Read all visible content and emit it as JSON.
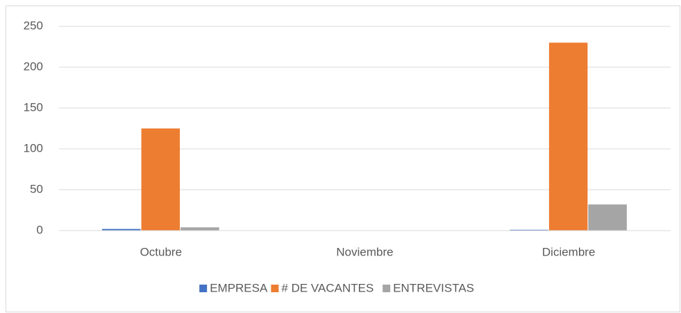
{
  "chart_data": {
    "type": "bar",
    "categories": [
      "Octubre",
      "Noviembre",
      "Diciembre"
    ],
    "series": [
      {
        "name": "EMPRESA",
        "color": "#4472c4",
        "values": [
          2,
          0,
          1
        ]
      },
      {
        "name": "# DE VACANTES",
        "color": "#ed7d31",
        "values": [
          125,
          0,
          230
        ]
      },
      {
        "name": "ENTREVISTAS",
        "color": "#a5a5a5",
        "values": [
          4,
          0,
          32
        ]
      }
    ],
    "ylim": [
      0,
      250
    ],
    "yticks": [
      0,
      50,
      100,
      150,
      200,
      250
    ],
    "grid": true,
    "legend": "bottom"
  }
}
